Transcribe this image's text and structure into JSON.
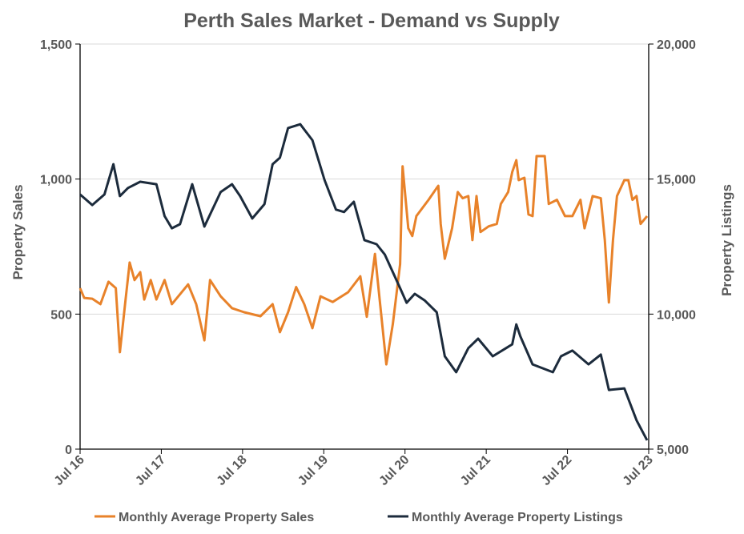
{
  "chart_data": {
    "type": "line",
    "title": "Perth Sales Market - Demand vs Supply",
    "xlabel": "",
    "ylabel": "Property Sales",
    "y2label": "Property Listings",
    "xlim": [
      2016.5,
      2023.5
    ],
    "ylim": [
      0,
      1500
    ],
    "y2lim": [
      5000,
      20000
    ],
    "x_ticks": [
      2016.5,
      2017.5,
      2018.5,
      2019.5,
      2020.5,
      2021.5,
      2022.5,
      2023.5
    ],
    "x_tick_labels": [
      "Jul 16",
      "Jul 17",
      "Jul 18",
      "Jul 19",
      "Jul 20",
      "Jul 21",
      "Jul 22",
      "Jul 23"
    ],
    "y_ticks": [
      0,
      500,
      1000,
      1500
    ],
    "y_tick_labels": [
      "0",
      "500",
      "1,000",
      "1,500"
    ],
    "y2_ticks": [
      5000,
      10000,
      15000,
      20000
    ],
    "y2_tick_labels": [
      "5,000",
      "10,000",
      "15,000",
      "20,000"
    ],
    "grid": "horizontal",
    "legend_position": "bottom",
    "series": [
      {
        "name": "Monthly Average Property Sales",
        "axis": "left",
        "color": "#E8822A",
        "x": [
          2016.5,
          2016.55,
          2016.65,
          2016.75,
          2016.85,
          2016.94,
          2016.99,
          2017.06,
          2017.11,
          2017.17,
          2017.24,
          2017.29,
          2017.37,
          2017.44,
          2017.54,
          2017.63,
          2017.83,
          2017.93,
          2018.03,
          2018.1,
          2018.23,
          2018.37,
          2018.52,
          2018.72,
          2018.87,
          2018.96,
          2019.06,
          2019.16,
          2019.26,
          2019.36,
          2019.46,
          2019.61,
          2019.8,
          2019.95,
          2020.03,
          2020.13,
          2020.27,
          2020.35,
          2020.44,
          2020.47,
          2020.54,
          2020.59,
          2020.64,
          2020.79,
          2020.89,
          2020.91,
          2020.94,
          2020.99,
          2021.08,
          2021.15,
          2021.21,
          2021.28,
          2021.33,
          2021.38,
          2021.43,
          2021.53,
          2021.63,
          2021.68,
          2021.77,
          2021.82,
          2021.87,
          2021.9,
          2021.97,
          2022.02,
          2022.07,
          2022.12,
          2022.22,
          2022.27,
          2022.37,
          2022.47,
          2022.56,
          2022.66,
          2022.71,
          2022.81,
          2022.91,
          2022.96,
          2023.01,
          2023.06,
          2023.11,
          2023.2,
          2023.25,
          2023.3,
          2023.35,
          2023.4,
          2023.48
        ],
        "y": [
          596,
          560,
          557,
          537,
          620,
          596,
          359,
          554,
          691,
          626,
          655,
          554,
          626,
          554,
          626,
          537,
          610,
          537,
          403,
          626,
          566,
          522,
          507,
          492,
          537,
          433,
          507,
          600,
          537,
          448,
          566,
          545,
          581,
          640,
          490,
          723,
          314,
          463,
          685,
          1047,
          818,
          789,
          863,
          923,
          967,
          975,
          833,
          705,
          818,
          952,
          929,
          937,
          774,
          937,
          804,
          825,
          834,
          908,
          952,
          1026,
          1070,
          996,
          1005,
          869,
          863,
          1085,
          1085,
          908,
          923,
          863,
          863,
          923,
          818,
          937,
          929,
          774,
          543,
          774,
          937,
          996,
          996,
          923,
          937,
          834,
          863
        ]
      },
      {
        "name": "Monthly Average Property Listings",
        "axis": "right",
        "color": "#1C2B3C",
        "x": [
          2016.5,
          2016.65,
          2016.8,
          2016.91,
          2016.99,
          2017.09,
          2017.24,
          2017.44,
          2017.54,
          2017.63,
          2017.73,
          2017.88,
          2018.03,
          2018.23,
          2018.37,
          2018.47,
          2018.62,
          2018.77,
          2018.87,
          2018.96,
          2019.06,
          2019.21,
          2019.36,
          2019.51,
          2019.65,
          2019.75,
          2019.87,
          2020.0,
          2020.15,
          2020.25,
          2020.44,
          2020.52,
          2020.62,
          2020.74,
          2020.89,
          2020.99,
          2021.13,
          2021.28,
          2021.4,
          2021.58,
          2021.82,
          2021.87,
          2021.92,
          2022.07,
          2022.32,
          2022.42,
          2022.56,
          2022.76,
          2022.91,
          2023.01,
          2023.2,
          2023.35,
          2023.48
        ],
        "y": [
          14430,
          14040,
          14430,
          15550,
          14370,
          14670,
          14900,
          14810,
          13630,
          13180,
          13330,
          14810,
          13240,
          14520,
          14810,
          14370,
          13540,
          14070,
          15550,
          15790,
          16890,
          17030,
          16440,
          14960,
          13870,
          13780,
          14160,
          12740,
          12590,
          12210,
          10960,
          10420,
          10750,
          10510,
          10070,
          8440,
          7850,
          8740,
          9090,
          8440,
          8880,
          9620,
          9180,
          8140,
          7850,
          8440,
          8650,
          8140,
          8500,
          7190,
          7250,
          6070,
          5330
        ]
      }
    ]
  }
}
